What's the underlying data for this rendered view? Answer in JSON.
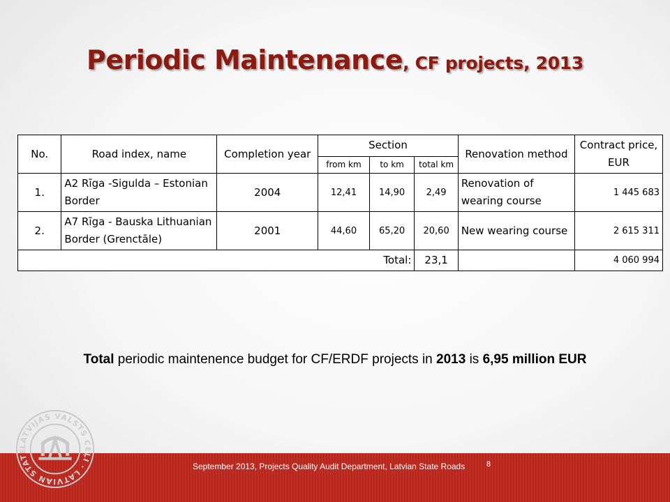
{
  "title": {
    "main": "Periodic Maintenance",
    "sub": ", CF projects, 2013"
  },
  "table": {
    "headers": {
      "no": "No.",
      "road": "Road index, name",
      "completion": "Completion year",
      "section": "Section",
      "from": "from km",
      "to": "to km",
      "total": "total km",
      "method": "Renovation method",
      "price": "Contract price, EUR"
    },
    "rows": [
      {
        "no": "1.",
        "road": "A2 Rīga -Sigulda – Estonian Border",
        "year": "2004",
        "from": "12,41",
        "to": "14,90",
        "total": "2,49",
        "method": "Renovation of wearing course",
        "price": "1 445 683"
      },
      {
        "no": "2.",
        "road": "A7 Rīga - Bauska Lithuanian Border (Grenctāle)",
        "year": "2001",
        "from": "44,60",
        "to": "65,20",
        "total": "20,60",
        "method": "New wearing course",
        "price": "2 615 311"
      }
    ],
    "total_row": {
      "label": "Total:",
      "total_km": "23,1",
      "price": "4 060 994"
    }
  },
  "note": {
    "p1": "Total",
    "p2": " periodic maintenence budget for CF/ERDF projects in ",
    "p3": "2013",
    "p4": " is ",
    "p5": "6,95 million EUR"
  },
  "logo": {
    "text": "LATVIJAS VALSTS CEĻI · LATVIAN STATE ROADS ·"
  },
  "footer": {
    "text": "September 2013,  Projects Quality Audit Department, Latvian State Roads",
    "page": "8"
  },
  "colors": {
    "title": "#8b1a10",
    "footer_band": "#b8271c"
  }
}
